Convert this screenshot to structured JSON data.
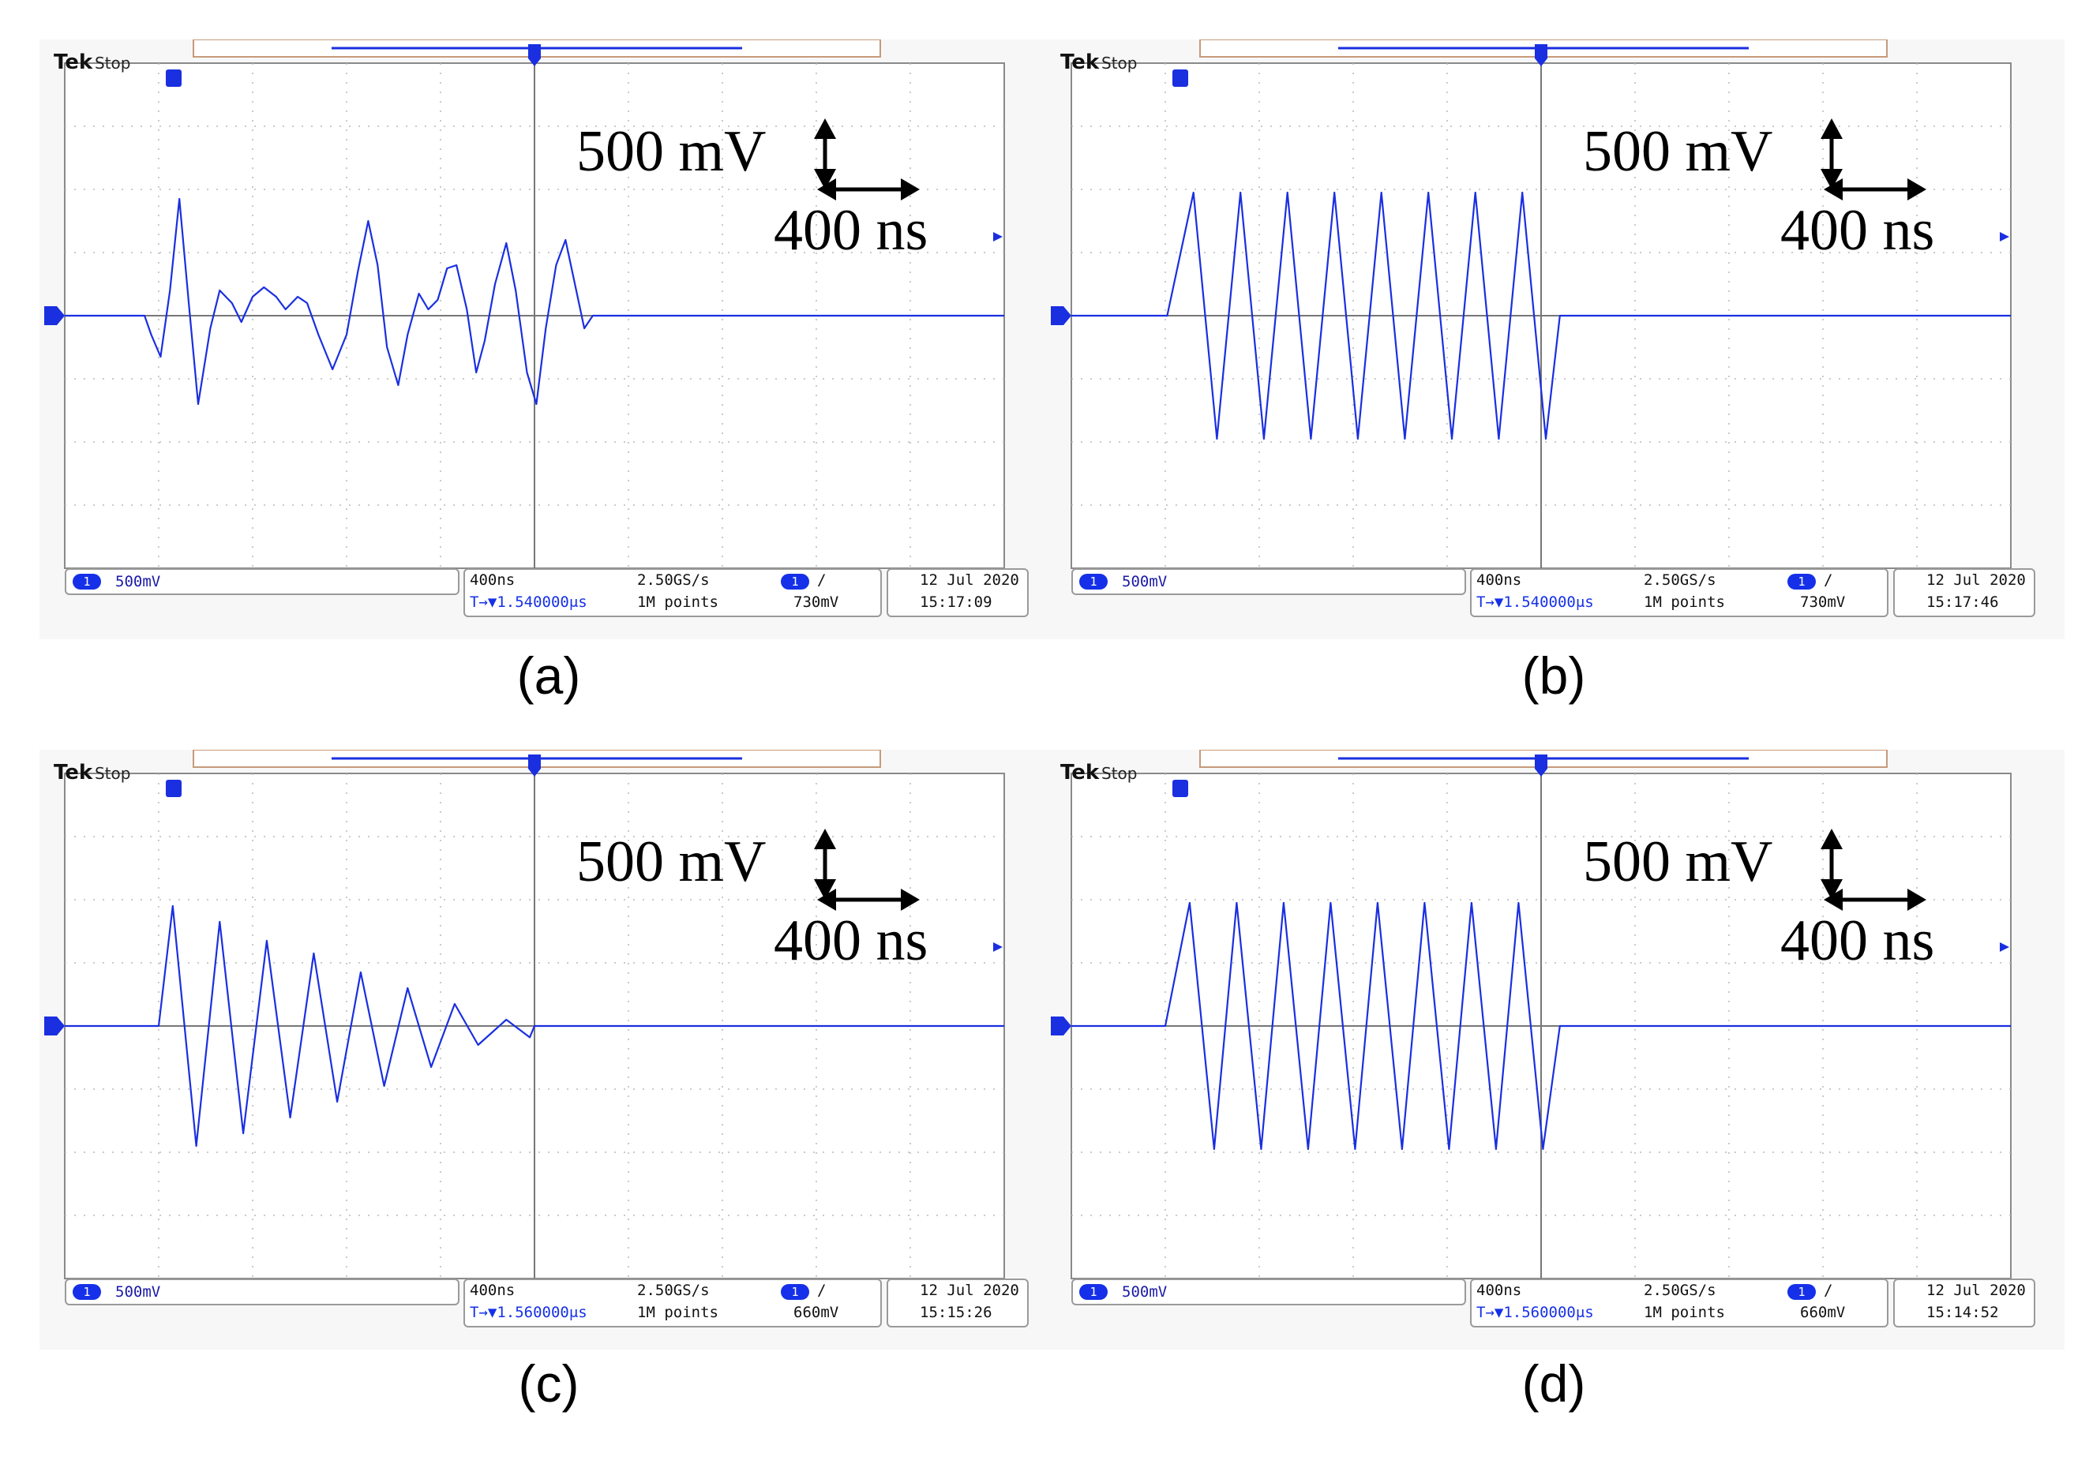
{
  "panels": [
    {
      "id": "a",
      "caption": "(a)",
      "brand": "Tek",
      "status": "Stop",
      "ch1_scale": "500mV",
      "time_div": "400ns",
      "sample_rate": "2.50GS/s",
      "trigger_pos": "T→▼1.540000μs",
      "record": "1M points",
      "trig_level": "730mV",
      "date": "12 Jul  2020",
      "time": "15:17:09",
      "v_scale": "500 mV",
      "t_scale": "400 ns",
      "ch_marker": "1",
      "trig_marker": "T"
    },
    {
      "id": "b",
      "caption": "(b)",
      "brand": "Tek",
      "status": "Stop",
      "ch1_scale": "500mV",
      "time_div": "400ns",
      "sample_rate": "2.50GS/s",
      "trigger_pos": "T→▼1.540000μs",
      "record": "1M points",
      "trig_level": "730mV",
      "date": "12 Jul  2020",
      "time": "15:17:46",
      "v_scale": "500 mV",
      "t_scale": "400 ns",
      "ch_marker": "1",
      "trig_marker": "T"
    },
    {
      "id": "c",
      "caption": "(c)",
      "brand": "Tek",
      "status": "Stop",
      "ch1_scale": "500mV",
      "time_div": "400ns",
      "sample_rate": "2.50GS/s",
      "trigger_pos": "T→▼1.560000μs",
      "record": "1M points",
      "trig_level": "660mV",
      "date": "12 Jul  2020",
      "time": "15:15:26",
      "v_scale": "500 mV",
      "t_scale": "400 ns",
      "ch_marker": "1",
      "trig_marker": "T"
    },
    {
      "id": "d",
      "caption": "(d)",
      "brand": "Tek",
      "status": "Stop",
      "ch1_scale": "500mV",
      "time_div": "400ns",
      "sample_rate": "2.50GS/s",
      "trigger_pos": "T→▼1.560000μs",
      "record": "1M points",
      "trig_level": "660mV",
      "date": "12 Jul  2020",
      "time": "15:14:52",
      "v_scale": "500 mV",
      "t_scale": "400 ns",
      "ch_marker": "1",
      "trig_marker": "T"
    }
  ],
  "colors": {
    "trace": "#1a2fe0",
    "grid": "#b9b9b9",
    "center": "#777777",
    "marker": "#1a2fe0"
  },
  "chart_data": [
    {
      "type": "line",
      "panel": "a",
      "xlabel": "",
      "ylabel": "",
      "x_unit": "div",
      "y_unit": "div",
      "xlim": [
        0,
        10
      ],
      "ylim": [
        -4,
        4
      ],
      "series": [
        {
          "values": [
            [
              0,
              0
            ],
            [
              0.85,
              0
            ],
            [
              0.92,
              -0.3
            ],
            [
              1.02,
              -0.65
            ],
            [
              1.12,
              0.4
            ],
            [
              1.22,
              1.85
            ],
            [
              1.32,
              0.2
            ],
            [
              1.42,
              -1.4
            ],
            [
              1.55,
              -0.2
            ],
            [
              1.65,
              0.4
            ],
            [
              1.78,
              0.2
            ],
            [
              1.88,
              -0.1
            ],
            [
              2.0,
              0.3
            ],
            [
              2.12,
              0.45
            ],
            [
              2.25,
              0.3
            ],
            [
              2.35,
              0.1
            ],
            [
              2.48,
              0.3
            ],
            [
              2.58,
              0.2
            ],
            [
              2.7,
              -0.3
            ],
            [
              2.85,
              -0.85
            ],
            [
              3.0,
              -0.3
            ],
            [
              3.12,
              0.7
            ],
            [
              3.23,
              1.5
            ],
            [
              3.33,
              0.8
            ],
            [
              3.43,
              -0.5
            ],
            [
              3.55,
              -1.1
            ],
            [
              3.65,
              -0.3
            ],
            [
              3.77,
              0.35
            ],
            [
              3.87,
              0.1
            ],
            [
              3.97,
              0.25
            ],
            [
              4.07,
              0.75
            ],
            [
              4.17,
              0.8
            ],
            [
              4.28,
              0.1
            ],
            [
              4.38,
              -0.9
            ],
            [
              4.47,
              -0.4
            ],
            [
              4.58,
              0.5
            ],
            [
              4.7,
              1.15
            ],
            [
              4.8,
              0.4
            ],
            [
              4.92,
              -0.9
            ],
            [
              5.02,
              -1.4
            ],
            [
              5.12,
              -0.2
            ],
            [
              5.23,
              0.8
            ],
            [
              5.33,
              1.2
            ],
            [
              5.43,
              0.5
            ],
            [
              5.53,
              -0.2
            ],
            [
              5.62,
              0
            ],
            [
              10,
              0
            ]
          ]
        }
      ]
    },
    {
      "type": "line",
      "panel": "b",
      "xlabel": "",
      "ylabel": "",
      "x_unit": "div",
      "y_unit": "div",
      "xlim": [
        0,
        10
      ],
      "ylim": [
        -4,
        4
      ],
      "series": [
        {
          "values": [
            [
              0,
              0
            ],
            [
              1.02,
              0
            ],
            [
              1.3,
              1.95
            ],
            [
              1.55,
              -1.95
            ],
            [
              1.8,
              1.95
            ],
            [
              2.05,
              -1.95
            ],
            [
              2.3,
              1.95
            ],
            [
              2.55,
              -1.95
            ],
            [
              2.8,
              1.95
            ],
            [
              3.05,
              -1.95
            ],
            [
              3.3,
              1.95
            ],
            [
              3.55,
              -1.95
            ],
            [
              3.8,
              1.95
            ],
            [
              4.05,
              -1.95
            ],
            [
              4.3,
              1.95
            ],
            [
              4.55,
              -1.95
            ],
            [
              4.8,
              1.95
            ],
            [
              5.05,
              -1.95
            ],
            [
              5.2,
              0
            ],
            [
              10,
              0
            ]
          ]
        }
      ]
    },
    {
      "type": "line",
      "panel": "c",
      "xlabel": "",
      "ylabel": "",
      "x_unit": "div",
      "y_unit": "div",
      "xlim": [
        0,
        10
      ],
      "ylim": [
        -4,
        4
      ],
      "series": [
        {
          "values": [
            [
              0,
              0
            ],
            [
              1.0,
              0
            ],
            [
              1.15,
              1.9
            ],
            [
              1.4,
              -1.9
            ],
            [
              1.65,
              1.65
            ],
            [
              1.9,
              -1.7
            ],
            [
              2.15,
              1.35
            ],
            [
              2.4,
              -1.45
            ],
            [
              2.65,
              1.15
            ],
            [
              2.9,
              -1.2
            ],
            [
              3.15,
              0.85
            ],
            [
              3.4,
              -0.95
            ],
            [
              3.65,
              0.6
            ],
            [
              3.9,
              -0.65
            ],
            [
              4.15,
              0.35
            ],
            [
              4.4,
              -0.3
            ],
            [
              4.7,
              0.1
            ],
            [
              4.95,
              -0.18
            ],
            [
              5.0,
              0
            ],
            [
              10,
              0
            ]
          ]
        }
      ]
    },
    {
      "type": "line",
      "panel": "d",
      "xlabel": "",
      "ylabel": "",
      "x_unit": "div",
      "y_unit": "div",
      "xlim": [
        0,
        10
      ],
      "ylim": [
        -4,
        4
      ],
      "series": [
        {
          "values": [
            [
              0,
              0
            ],
            [
              1.0,
              0
            ],
            [
              1.26,
              1.95
            ],
            [
              1.52,
              -1.95
            ],
            [
              1.76,
              1.95
            ],
            [
              2.02,
              -1.95
            ],
            [
              2.26,
              1.95
            ],
            [
              2.52,
              -1.95
            ],
            [
              2.76,
              1.95
            ],
            [
              3.02,
              -1.95
            ],
            [
              3.26,
              1.95
            ],
            [
              3.52,
              -1.95
            ],
            [
              3.76,
              1.95
            ],
            [
              4.02,
              -1.95
            ],
            [
              4.26,
              1.95
            ],
            [
              4.52,
              -1.95
            ],
            [
              4.76,
              1.95
            ],
            [
              5.02,
              -1.95
            ],
            [
              5.2,
              0
            ],
            [
              10,
              0
            ]
          ]
        }
      ]
    }
  ]
}
